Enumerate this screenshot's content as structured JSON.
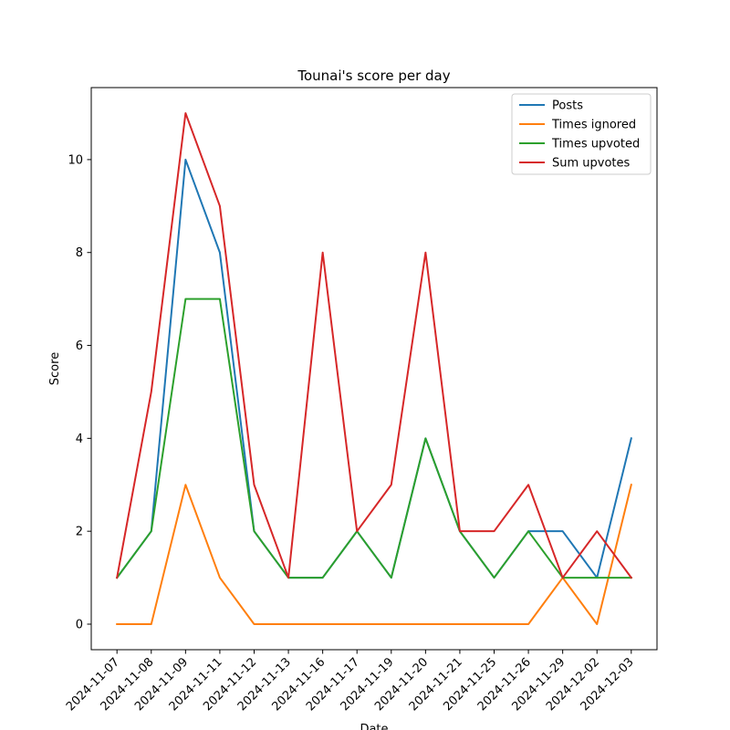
{
  "chart_data": {
    "type": "line",
    "title": "Tounai's score per day",
    "xlabel": "Date",
    "ylabel": "Score",
    "ylim": [
      -0.55,
      11.55
    ],
    "yticks": [
      0,
      2,
      4,
      6,
      8,
      10
    ],
    "ytick_labels": [
      "0",
      "2",
      "4",
      "6",
      "8",
      "10"
    ],
    "grid": false,
    "legend_position": "top-right",
    "categories": [
      "2024-11-07",
      "2024-11-08",
      "2024-11-09",
      "2024-11-11",
      "2024-11-12",
      "2024-11-13",
      "2024-11-16",
      "2024-11-17",
      "2024-11-19",
      "2024-11-20",
      "2024-11-21",
      "2024-11-25",
      "2024-11-26",
      "2024-11-29",
      "2024-12-02",
      "2024-12-03"
    ],
    "series": [
      {
        "name": "Posts",
        "color": "#1f77b4",
        "values": [
          1,
          2,
          10,
          8,
          2,
          1,
          1,
          2,
          1,
          4,
          2,
          1,
          2,
          2,
          1,
          4
        ]
      },
      {
        "name": "Times ignored",
        "color": "#ff7f0e",
        "values": [
          0,
          0,
          3,
          1,
          0,
          0,
          0,
          0,
          0,
          0,
          0,
          0,
          0,
          1,
          0,
          3
        ]
      },
      {
        "name": "Times upvoted",
        "color": "#2ca02c",
        "values": [
          1,
          2,
          7,
          7,
          2,
          1,
          1,
          2,
          1,
          4,
          2,
          1,
          2,
          1,
          1,
          1
        ]
      },
      {
        "name": "Sum upvotes",
        "color": "#d62728",
        "values": [
          1,
          5,
          11,
          9,
          3,
          1,
          8,
          2,
          3,
          8,
          2,
          2,
          3,
          1,
          2,
          1
        ]
      }
    ]
  }
}
